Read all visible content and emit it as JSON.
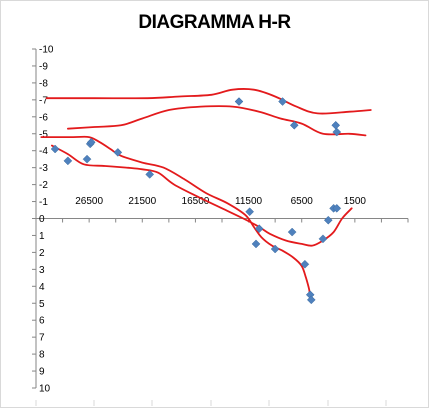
{
  "chart_data": {
    "type": "scatter",
    "title": "DIAGRAMMA H-R",
    "xlabel": "",
    "ylabel": "",
    "x_reversed": true,
    "y_reversed": true,
    "xlim": [
      31500,
      -3500
    ],
    "ylim": [
      -10,
      10
    ],
    "x_ticks": [
      26500,
      21500,
      16500,
      11500,
      6500,
      1500
    ],
    "x_tick_labels": [
      "26500",
      "21500",
      "16500",
      "11500",
      "6500",
      "1500"
    ],
    "y_ticks": [
      -10,
      -9,
      -8,
      -7,
      -6,
      -5,
      -4,
      -3,
      -2,
      -1,
      0,
      1,
      2,
      3,
      4,
      5,
      6,
      7,
      8,
      9,
      10
    ],
    "y_tick_labels": [
      "-10",
      "-9",
      "-8",
      "-7",
      "-6",
      "-5",
      "-4",
      "-3",
      "-2",
      "-1",
      "0",
      "1",
      "2",
      "3",
      "4",
      "5",
      "6",
      "7",
      "8",
      "9",
      "10"
    ],
    "grid": false,
    "marker_color": "#4f81bd",
    "line_color": "#e31a1c",
    "series": [
      {
        "points": [
          {
            "x": 29700,
            "y": -4.1
          },
          {
            "x": 28500,
            "y": -3.4
          },
          {
            "x": 26700,
            "y": -3.5
          },
          {
            "x": 26400,
            "y": -4.4
          },
          {
            "x": 26300,
            "y": -4.5
          },
          {
            "x": 23800,
            "y": -3.9
          },
          {
            "x": 20800,
            "y": -2.6
          },
          {
            "x": 12400,
            "y": -6.9
          },
          {
            "x": 11400,
            "y": -0.4
          },
          {
            "x": 8300,
            "y": -6.9
          },
          {
            "x": 7200,
            "y": -5.5
          },
          {
            "x": 3300,
            "y": -5.5
          },
          {
            "x": 3200,
            "y": -5.1
          },
          {
            "x": 10500,
            "y": 0.6
          },
          {
            "x": 10800,
            "y": 1.5
          },
          {
            "x": 9000,
            "y": 1.8
          },
          {
            "x": 7400,
            "y": 0.8
          },
          {
            "x": 6200,
            "y": 2.7
          },
          {
            "x": 5700,
            "y": 4.5
          },
          {
            "x": 5600,
            "y": 4.8
          },
          {
            "x": 4500,
            "y": 1.2
          },
          {
            "x": 4000,
            "y": 0.1
          },
          {
            "x": 3500,
            "y": -0.6
          },
          {
            "x": 3200,
            "y": -0.6
          }
        ]
      }
    ],
    "curves": [
      [
        [
          30500,
          -7.1
        ],
        [
          26000,
          -7.1
        ],
        [
          21000,
          -7.1
        ],
        [
          18000,
          -7.2
        ],
        [
          15000,
          -7.3
        ],
        [
          13000,
          -7.6
        ],
        [
          11000,
          -7.6
        ],
        [
          9000,
          -7.2
        ],
        [
          7000,
          -6.6
        ],
        [
          5000,
          -6.2
        ],
        [
          2000,
          -6.3
        ],
        [
          0,
          -6.4
        ]
      ],
      [
        [
          28500,
          -5.3
        ],
        [
          26000,
          -5.4
        ],
        [
          23500,
          -5.5
        ],
        [
          21500,
          -5.9
        ],
        [
          19000,
          -6.4
        ],
        [
          16000,
          -6.6
        ],
        [
          13000,
          -6.6
        ],
        [
          10500,
          -6.3
        ],
        [
          8500,
          -5.9
        ],
        [
          6500,
          -5.6
        ],
        [
          4500,
          -5.0
        ],
        [
          2000,
          -5.0
        ],
        [
          500,
          -4.9
        ]
      ],
      [
        [
          31000,
          -4.8
        ],
        [
          28000,
          -4.8
        ],
        [
          26500,
          -4.8
        ],
        [
          25500,
          -4.5
        ],
        [
          24500,
          -4.1
        ],
        [
          23500,
          -3.7
        ],
        [
          21500,
          -3.3
        ],
        [
          19500,
          -3.0
        ],
        [
          17500,
          -2.3
        ],
        [
          15500,
          -1.5
        ],
        [
          13500,
          -0.9
        ],
        [
          11800,
          -0.2
        ],
        [
          11000,
          0.5
        ],
        [
          10300,
          1.1
        ],
        [
          9300,
          1.6
        ],
        [
          8300,
          1.9
        ],
        [
          7300,
          2.3
        ],
        [
          6500,
          2.8
        ],
        [
          6100,
          3.5
        ],
        [
          5800,
          4.2
        ],
        [
          5700,
          4.8
        ]
      ],
      [
        [
          30000,
          -4.3
        ],
        [
          28500,
          -3.8
        ],
        [
          27000,
          -3.2
        ],
        [
          25000,
          -3.1
        ],
        [
          23000,
          -3.0
        ],
        [
          21500,
          -2.9
        ],
        [
          20000,
          -2.7
        ],
        [
          18500,
          -2.0
        ],
        [
          16000,
          -1.2
        ],
        [
          14000,
          -0.6
        ],
        [
          12000,
          0.0
        ],
        [
          10500,
          0.5
        ],
        [
          9500,
          0.9
        ],
        [
          8000,
          1.3
        ],
        [
          6500,
          1.5
        ],
        [
          5500,
          1.6
        ],
        [
          4500,
          1.3
        ],
        [
          3500,
          0.8
        ],
        [
          2700,
          0.0
        ],
        [
          1800,
          -0.6
        ]
      ]
    ]
  }
}
